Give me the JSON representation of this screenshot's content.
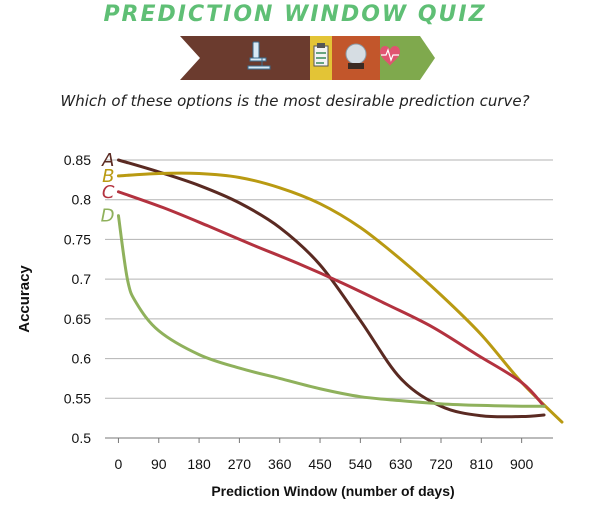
{
  "header": {
    "title": "PREDICTION WINDOW QUIZ",
    "question": "Which of these options is the most desirable prediction curve?"
  },
  "banner": {
    "icons": [
      "microscope-icon",
      "clipboard-icon",
      "crystal-ball-icon",
      "heart-rate-icon"
    ],
    "colors": [
      "#6b3b2e",
      "#e3c436",
      "#c2562b",
      "#7fa94d"
    ]
  },
  "chart_data": {
    "type": "line",
    "xlabel": "Prediction Window (number of days)",
    "ylabel": "Accuracy",
    "xlim": [
      -30,
      970
    ],
    "ylim": [
      0.5,
      0.85
    ],
    "xticks": [
      0,
      90,
      180,
      270,
      360,
      450,
      540,
      630,
      720,
      810,
      900
    ],
    "yticks": [
      0.85,
      0.8,
      0.75,
      0.7,
      0.65,
      0.6,
      0.55,
      0.5
    ],
    "ytick_labels": [
      "0.85",
      "0.8",
      "0.75",
      "0.7",
      "0.65",
      "0.6",
      "0.55",
      "0.5"
    ],
    "grid": true,
    "series": [
      {
        "name": "A",
        "color": "#5a2a22",
        "x": [
          0,
          90,
          180,
          270,
          360,
          450,
          540,
          630,
          720,
          810,
          900,
          950
        ],
        "y": [
          0.85,
          0.835,
          0.818,
          0.796,
          0.765,
          0.718,
          0.648,
          0.575,
          0.54,
          0.528,
          0.527,
          0.529
        ]
      },
      {
        "name": "B",
        "color": "#b99a12",
        "x": [
          0,
          90,
          180,
          270,
          360,
          450,
          540,
          630,
          720,
          810,
          900,
          990
        ],
        "y": [
          0.83,
          0.833,
          0.833,
          0.828,
          0.815,
          0.795,
          0.765,
          0.725,
          0.68,
          0.63,
          0.57,
          0.52
        ]
      },
      {
        "name": "C",
        "color": "#b3323f",
        "x": [
          0,
          100,
          200,
          300,
          400,
          500,
          600,
          700,
          800,
          900,
          950
        ],
        "y": [
          0.81,
          0.79,
          0.767,
          0.743,
          0.72,
          0.695,
          0.668,
          0.64,
          0.605,
          0.57,
          0.54
        ]
      },
      {
        "name": "D",
        "color": "#8fb15c",
        "x": [
          0,
          20,
          40,
          90,
          180,
          270,
          360,
          450,
          540,
          630,
          720,
          810,
          900,
          950
        ],
        "y": [
          0.78,
          0.7,
          0.67,
          0.635,
          0.605,
          0.588,
          0.575,
          0.562,
          0.552,
          0.547,
          0.543,
          0.541,
          0.54,
          0.54
        ]
      }
    ]
  }
}
